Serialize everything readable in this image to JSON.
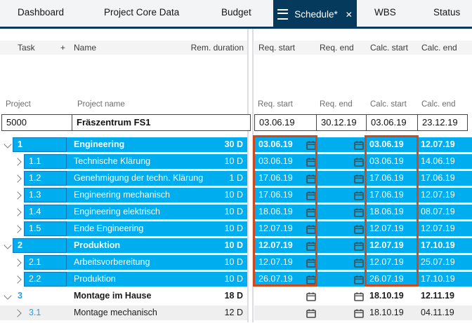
{
  "tabs": {
    "items": [
      {
        "label": "Dashboard",
        "active": false
      },
      {
        "label": "Project Core Data",
        "active": false
      },
      {
        "label": "Budget",
        "active": false
      },
      {
        "label": "Schedule*",
        "active": true
      },
      {
        "label": "WBS",
        "active": false
      },
      {
        "label": "Status",
        "active": false
      }
    ],
    "close_icon": "✕"
  },
  "columns": {
    "task": "Task",
    "plus": "+",
    "name": "Name",
    "rem_duration": "Rem. duration",
    "req_start": "Req. start",
    "req_end": "Req. end",
    "calc_start": "Calc. start",
    "calc_end": "Calc. end"
  },
  "filter_labels": {
    "project": "Project",
    "project_name": "Project name",
    "req_start": "Req. start",
    "req_end": "Req. end",
    "calc_start": "Calc. start",
    "calc_end": "Calc. end"
  },
  "project_row": {
    "id": "5000",
    "name": "Fräszentrum FS1",
    "req_start": "03.06.19",
    "req_end": "30.12.19",
    "calc_start": "03.06.19",
    "calc_end": "23.12.19"
  },
  "rows": [
    {
      "id": "1",
      "name": "Engineering",
      "duration": "30 D",
      "req_start": "03.06.19",
      "req_end": "",
      "calc_start": "03.06.19",
      "calc_end": "12.07.19",
      "level": 0,
      "bold": true,
      "highlighted": true,
      "bg": "cyan"
    },
    {
      "id": "1.1",
      "name": "Technische Klärung",
      "duration": "10 D",
      "req_start": "03.06.19",
      "req_end": "",
      "calc_start": "03.06.19",
      "calc_end": "14.06.19",
      "level": 1,
      "bold": false,
      "highlighted": true,
      "bg": "cyan"
    },
    {
      "id": "1.2",
      "name": "Genehmigung der techn. Klärung",
      "duration": "1 D",
      "req_start": "17.06.19",
      "req_end": "",
      "calc_start": "17.06.19",
      "calc_end": "17.06.19",
      "level": 1,
      "bold": false,
      "highlighted": true,
      "bg": "cyan"
    },
    {
      "id": "1.3",
      "name": "Engineering mechanisch",
      "duration": "10 D",
      "req_start": "17.06.19",
      "req_end": "",
      "calc_start": "17.06.19",
      "calc_end": "12.07.19",
      "level": 1,
      "bold": false,
      "highlighted": true,
      "bg": "cyan"
    },
    {
      "id": "1.4",
      "name": "Engineering elektrisch",
      "duration": "10 D",
      "req_start": "18.06.19",
      "req_end": "",
      "calc_start": "18.06.19",
      "calc_end": "08.07.19",
      "level": 1,
      "bold": false,
      "highlighted": true,
      "bg": "cyan"
    },
    {
      "id": "1.5",
      "name": "Ende Engineering",
      "duration": "10 D",
      "req_start": "12.07.19",
      "req_end": "",
      "calc_start": "12.07.19",
      "calc_end": "12.07.19",
      "level": 1,
      "bold": false,
      "highlighted": true,
      "bg": "cyan"
    },
    {
      "id": "2",
      "name": "Produktion",
      "duration": "10 D",
      "req_start": "12.07.19",
      "req_end": "",
      "calc_start": "12.07.19",
      "calc_end": "17.10.19",
      "level": 0,
      "bold": true,
      "highlighted": true,
      "bg": "cyan"
    },
    {
      "id": "2.1",
      "name": "Arbeitsvorbereitung",
      "duration": "10 D",
      "req_start": "12.07.19",
      "req_end": "",
      "calc_start": "12.07.19",
      "calc_end": "25.07.19",
      "level": 1,
      "bold": false,
      "highlighted": true,
      "bg": "cyan"
    },
    {
      "id": "2.2",
      "name": "Produktion",
      "duration": "10 D",
      "req_start": "26.07.19",
      "req_end": "",
      "calc_start": "26.07.19",
      "calc_end": "17.10.19",
      "level": 1,
      "bold": false,
      "highlighted": true,
      "bg": "cyan"
    },
    {
      "id": "3",
      "name": "Montage im Hause",
      "duration": "18 D",
      "req_start": "",
      "req_end": "",
      "calc_start": "18.10.19",
      "calc_end": "12.11.19",
      "level": 0,
      "bold": true,
      "highlighted": false,
      "bg": "white"
    },
    {
      "id": "3.1",
      "name": "Montage mechanisch",
      "duration": "12 D",
      "req_start": "",
      "req_end": "",
      "calc_start": "18.10.19",
      "calc_end": "04.11.19",
      "level": 1,
      "bold": false,
      "highlighted": false,
      "bg": "gray"
    }
  ],
  "colors": {
    "accent_cyan": "#00adee",
    "navy": "#053a5d",
    "highlight_box_red": "#d0491b",
    "id_cell_border": "#1277b6",
    "id_text_blue": "#2c9fd9",
    "gray_row": "#efefef"
  }
}
